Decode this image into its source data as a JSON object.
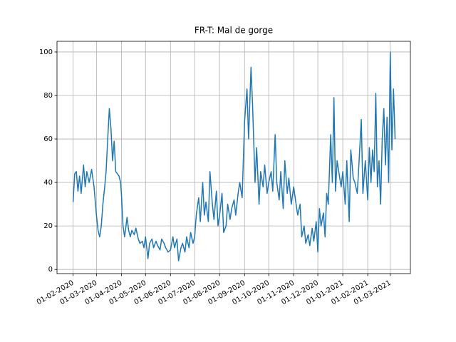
{
  "chart_data": {
    "type": "line",
    "title": "FR-T: Mal de gorge",
    "x": [
      "01-02-2020",
      "03-02-2020",
      "05-02-2020",
      "07-02-2020",
      "09-02-2020",
      "11-02-2020",
      "14-02-2020",
      "16-02-2020",
      "18-02-2020",
      "21-02-2020",
      "24-02-2020",
      "27-02-2020",
      "01-03-2020",
      "03-03-2020",
      "05-03-2020",
      "07-03-2020",
      "09-03-2020",
      "11-03-2020",
      "13-03-2020",
      "15-03-2020",
      "17-03-2020",
      "19-03-2020",
      "21-03-2020",
      "23-03-2020",
      "25-03-2020",
      "27-03-2020",
      "29-03-2020",
      "31-03-2020",
      "01-04-2020",
      "03-04-2020",
      "05-04-2020",
      "08-04-2020",
      "10-04-2020",
      "12-04-2020",
      "14-04-2020",
      "17-04-2020",
      "19-04-2020",
      "22-04-2020",
      "24-04-2020",
      "27-04-2020",
      "29-04-2020",
      "01-05-2020",
      "04-05-2020",
      "06-05-2020",
      "09-05-2020",
      "11-05-2020",
      "14-05-2020",
      "16-05-2020",
      "19-05-2020",
      "21-05-2020",
      "24-05-2020",
      "26-05-2020",
      "29-05-2020",
      "01-06-2020",
      "04-06-2020",
      "06-06-2020",
      "09-06-2020",
      "11-06-2020",
      "14-06-2020",
      "16-06-2020",
      "19-06-2020",
      "21-06-2020",
      "24-06-2020",
      "26-06-2020",
      "29-06-2020",
      "01-07-2020",
      "03-07-2020",
      "06-07-2020",
      "08-07-2020",
      "11-07-2020",
      "13-07-2020",
      "15-07-2020",
      "18-07-2020",
      "20-07-2020",
      "23-07-2020",
      "25-07-2020",
      "28-07-2020",
      "30-07-2020",
      "01-08-2020",
      "04-08-2020",
      "06-08-2020",
      "09-08-2020",
      "11-08-2020",
      "14-08-2020",
      "16-08-2020",
      "19-08-2020",
      "21-08-2020",
      "24-08-2020",
      "26-08-2020",
      "29-08-2020",
      "01-09-2020",
      "04-09-2020",
      "06-09-2020",
      "09-09-2020",
      "11-09-2020",
      "14-09-2020",
      "16-09-2020",
      "19-09-2020",
      "21-09-2020",
      "24-09-2020",
      "26-09-2020",
      "29-09-2020",
      "01-10-2020",
      "04-10-2020",
      "06-10-2020",
      "09-10-2020",
      "11-10-2020",
      "14-10-2020",
      "16-10-2020",
      "19-10-2020",
      "21-10-2020",
      "24-10-2020",
      "26-10-2020",
      "29-10-2020",
      "01-11-2020",
      "04-11-2020",
      "06-11-2020",
      "09-11-2020",
      "11-11-2020",
      "14-11-2020",
      "16-11-2020",
      "19-11-2020",
      "21-11-2020",
      "24-11-2020",
      "26-11-2020",
      "29-11-2020",
      "01-12-2020",
      "03-12-2020",
      "05-12-2020",
      "08-12-2020",
      "10-12-2020",
      "12-12-2020",
      "14-12-2020",
      "17-12-2020",
      "19-12-2020",
      "21-12-2020",
      "23-12-2020",
      "25-12-2020",
      "27-12-2020",
      "30-12-2020",
      "01-01-2021",
      "04-01-2021",
      "06-01-2021",
      "09-01-2021",
      "11-01-2021",
      "14-01-2021",
      "16-01-2021",
      "19-01-2021",
      "21-01-2021",
      "24-01-2021",
      "26-01-2021",
      "29-01-2021",
      "01-02-2021",
      "03-02-2021",
      "05-02-2021",
      "07-02-2021",
      "09-02-2021",
      "11-02-2021",
      "13-02-2021",
      "15-02-2021",
      "17-02-2021",
      "19-02-2021",
      "21-02-2021",
      "23-02-2021",
      "25-02-2021",
      "27-02-2021",
      "01-03-2021",
      "03-03-2021",
      "05-03-2021",
      "07-03-2021"
    ],
    "values": [
      31,
      44,
      45,
      36,
      43,
      35,
      48,
      38,
      45,
      40,
      46,
      38,
      25,
      18,
      15,
      20,
      30,
      37,
      45,
      60,
      74,
      65,
      50,
      59,
      45,
      44,
      43,
      40,
      35,
      20,
      15,
      24,
      18,
      15,
      18,
      16,
      19,
      14,
      12,
      13,
      10,
      15,
      5,
      12,
      14,
      10,
      13,
      11,
      9,
      14,
      12,
      10,
      8,
      9,
      15,
      10,
      14,
      4,
      10,
      12,
      8,
      15,
      10,
      17,
      12,
      15,
      25,
      33,
      22,
      40,
      25,
      31,
      22,
      45,
      30,
      23,
      36,
      20,
      25,
      35,
      17,
      20,
      30,
      23,
      28,
      32,
      25,
      35,
      40,
      33,
      68,
      83,
      60,
      93,
      75,
      40,
      56,
      30,
      45,
      38,
      48,
      35,
      40,
      45,
      36,
      62,
      40,
      32,
      45,
      28,
      50,
      35,
      42,
      30,
      38,
      30,
      25,
      30,
      15,
      20,
      12,
      16,
      11,
      19,
      13,
      22,
      8,
      28,
      20,
      26,
      15,
      35,
      30,
      62,
      40,
      79,
      36,
      50,
      45,
      38,
      45,
      30,
      50,
      22,
      55,
      42,
      40,
      35,
      48,
      69,
      35,
      50,
      32,
      56,
      40,
      55,
      45,
      81,
      38,
      50,
      30,
      60,
      74,
      48,
      70,
      40,
      100,
      55,
      83,
      60
    ],
    "color": "#1f77b4",
    "xlim": [
      "12-01-2020",
      "26-03-2021"
    ],
    "xticks": [
      "01-02-2020",
      "01-03-2020",
      "01-04-2020",
      "01-05-2020",
      "01-06-2020",
      "01-07-2020",
      "01-08-2020",
      "01-09-2020",
      "01-10-2020",
      "01-11-2020",
      "01-12-2020",
      "01-01-2021",
      "01-02-2021",
      "01-03-2021"
    ],
    "ylim": [
      -1.9,
      104.9
    ],
    "yticks": [
      0,
      20,
      40,
      60,
      80,
      100
    ],
    "grid": true
  }
}
